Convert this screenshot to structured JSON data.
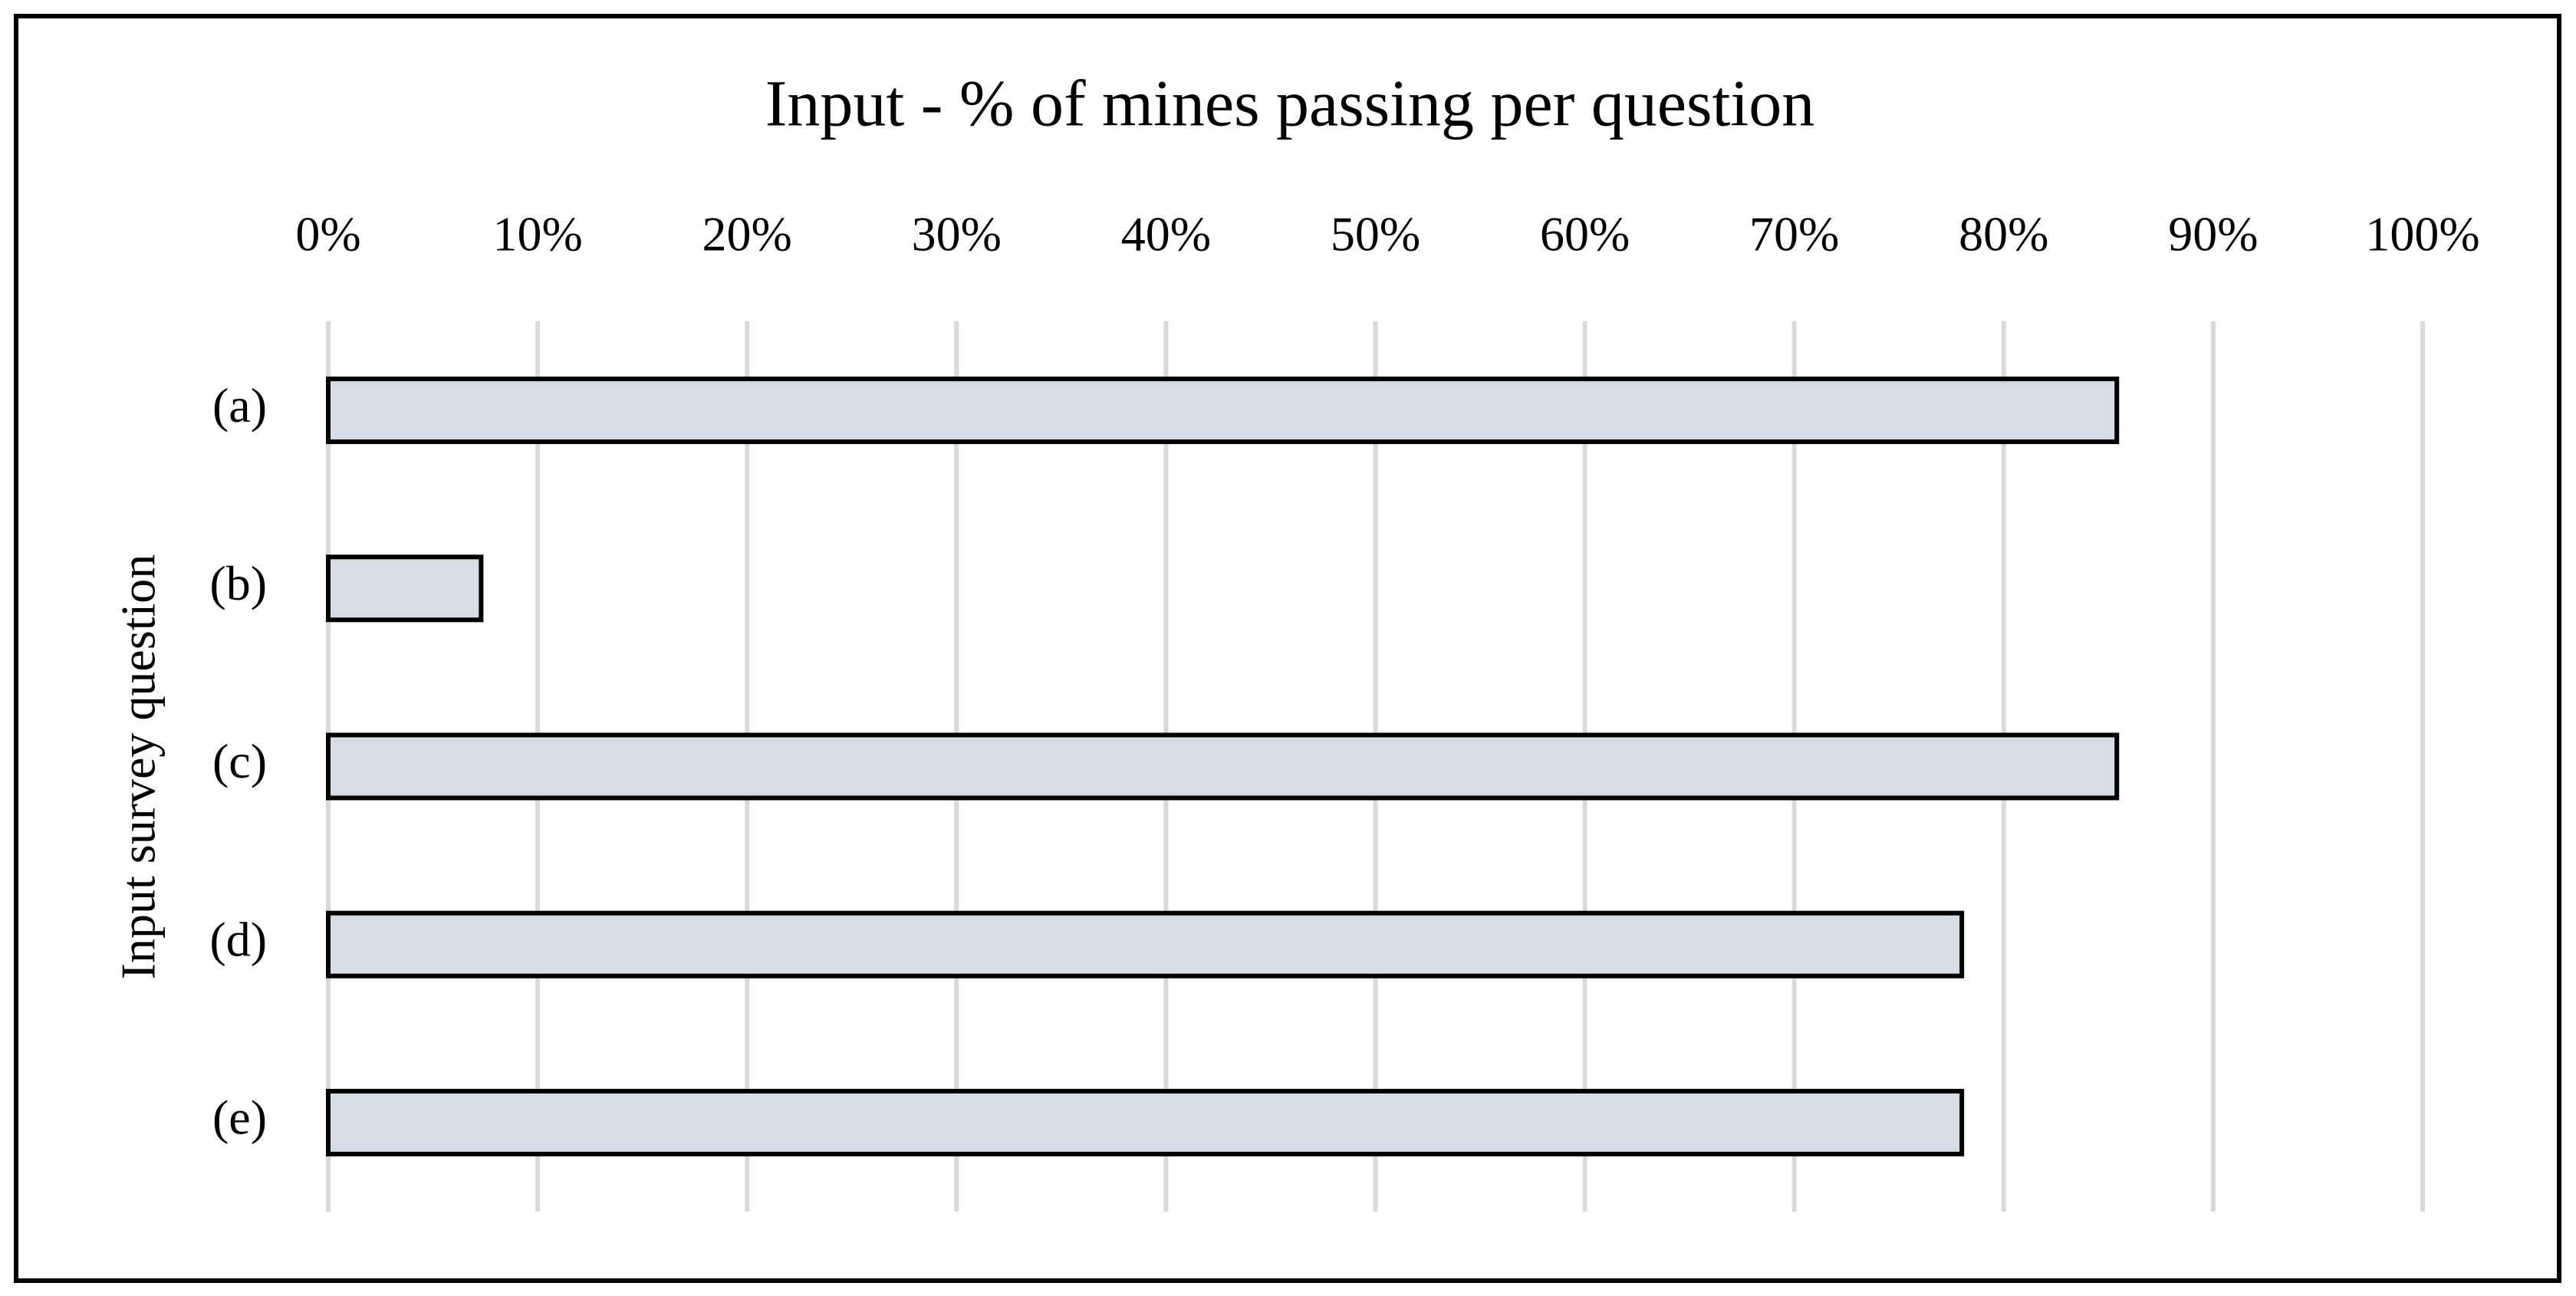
{
  "chart_data": {
    "type": "bar",
    "orientation": "horizontal",
    "title": "Input - % of mines passing per question",
    "y_axis_label": "Input survey question",
    "categories": [
      "(a)",
      "(b)",
      "(c)",
      "(d)",
      "(e)"
    ],
    "values": [
      85.4,
      7.3,
      85.4,
      78.0,
      78.0
    ],
    "color": "#d6dce4",
    "xlim": [
      0,
      100
    ],
    "xticks": [
      {
        "value": 0,
        "label": "0%"
      },
      {
        "value": 10,
        "label": "10%"
      },
      {
        "value": 20,
        "label": "20%"
      },
      {
        "value": 30,
        "label": "30%"
      },
      {
        "value": 40,
        "label": "40%"
      },
      {
        "value": 50,
        "label": "50%"
      },
      {
        "value": 60,
        "label": "60%"
      },
      {
        "value": 70,
        "label": "70%"
      },
      {
        "value": 80,
        "label": "80%"
      },
      {
        "value": 90,
        "label": "90%"
      },
      {
        "value": 100,
        "label": "100%"
      }
    ],
    "grid": true
  }
}
